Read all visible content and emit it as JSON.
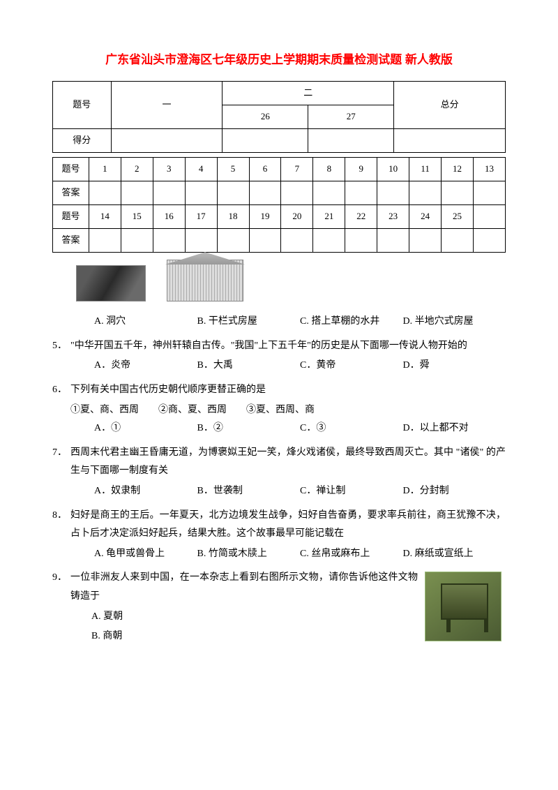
{
  "title": "广东省汕头市澄海区七年级历史上学期期末质量检测试题 新人教版",
  "score_table": {
    "row_label": "题号",
    "score_label": "得分",
    "sec1": "一",
    "sec2": "二",
    "sub26": "26",
    "sub27": "27",
    "total": "总分"
  },
  "answer_table": {
    "label_q": "题号",
    "label_a": "答案",
    "row1": [
      "1",
      "2",
      "3",
      "4",
      "5",
      "6",
      "7",
      "8",
      "9",
      "10",
      "11",
      "12",
      "13"
    ],
    "row2": [
      "14",
      "15",
      "16",
      "17",
      "18",
      "19",
      "20",
      "21",
      "22",
      "23",
      "24",
      "25",
      ""
    ]
  },
  "q4_options": {
    "a": "A. 洞穴",
    "b": "B. 干栏式房屋",
    "c": "C. 搭上草棚的水井",
    "d": "D. 半地穴式房屋"
  },
  "q5": {
    "num": "5．",
    "text": "\"中华开国五千年，神州轩辕自古传。\"我国\"上下五千年\"的历史是从下面哪一传说人物开始的",
    "a": "A．炎帝",
    "b": "B．大禹",
    "c": "C．黄帝",
    "d": "D．舜"
  },
  "q6": {
    "num": "6．",
    "text": "下列有关中国古代历史朝代顺序更替正确的是",
    "subs": "①夏、商、西周　　②商、夏、西周　　③夏、西周、商",
    "a": "A．①",
    "b": "B．②",
    "c": "C．③",
    "d": "D．以上都不对"
  },
  "q7": {
    "num": "7．",
    "text": "西周末代君主幽王昏庸无道，为博褒姒王妃一笑，烽火戏诸侯，最终导致西周灭亡。其中 \"诸侯\" 的产生与下面哪一制度有关",
    "a": "A．奴隶制",
    "b": "B．世袭制",
    "c": "C．禅让制",
    "d": "D．分封制"
  },
  "q8": {
    "num": "8．",
    "text": "妇好是商王的王后。一年夏天，北方边境发生战争，妇好自告奋勇，要求率兵前往，商王犹豫不决，占卜后才决定派妇好起兵，结果大胜。这个故事最早可能记载在",
    "a": "A. 龟甲或兽骨上",
    "b": "B. 竹简或木牍上",
    "c": "C. 丝帛或麻布上",
    "d": "D. 麻纸或宣纸上"
  },
  "q9": {
    "num": "9．",
    "text": "一位非洲友人来到中国，在一本杂志上看到右图所示文物，请你告诉他这件文物铸造于",
    "a": "A. 夏朝",
    "b": "B. 商朝"
  }
}
